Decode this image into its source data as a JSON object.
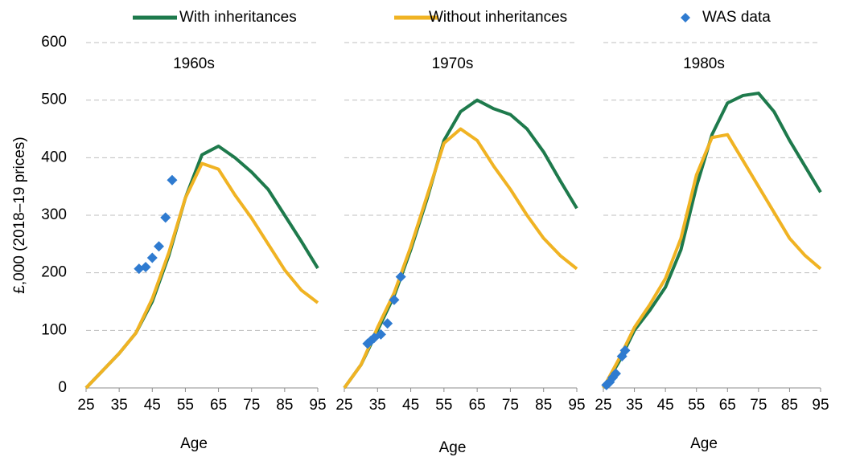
{
  "chart_data": [
    {
      "type": "line",
      "title": "1960s",
      "x_label": "Age",
      "y_label": "£,000 (2018–19 prices)",
      "x": [
        25,
        30,
        35,
        40,
        45,
        50,
        55,
        60,
        65,
        70,
        75,
        80,
        85,
        90,
        95
      ],
      "series": [
        {
          "name": "With inheritances",
          "color": "#1e7a4c",
          "values": [
            0,
            30,
            60,
            95,
            150,
            230,
            330,
            405,
            420,
            400,
            375,
            345,
            300,
            255,
            208
          ]
        },
        {
          "name": "Without inheritances",
          "color": "#f0b323",
          "values": [
            0,
            30,
            60,
            95,
            155,
            235,
            330,
            390,
            380,
            335,
            295,
            250,
            205,
            170,
            148
          ]
        },
        {
          "name": "WAS data",
          "type": "scatter",
          "color": "#2f7bd0",
          "x": [
            41,
            43,
            45,
            47,
            49,
            51
          ],
          "values": [
            207,
            210,
            226,
            246,
            296,
            361
          ]
        }
      ],
      "xlim": [
        25,
        95
      ],
      "xticks": [
        25,
        35,
        45,
        55,
        65,
        75,
        85,
        95
      ],
      "ylim": [
        0,
        600
      ],
      "yticks": [
        0,
        100,
        200,
        300,
        400,
        500,
        600
      ],
      "grid": true
    },
    {
      "type": "line",
      "title": "1970s",
      "x_label": "Age",
      "x": [
        25,
        30,
        35,
        40,
        45,
        50,
        55,
        60,
        65,
        70,
        75,
        80,
        85,
        90,
        95
      ],
      "series": [
        {
          "color": "#1e7a4c",
          "values": [
            0,
            40,
            100,
            160,
            240,
            330,
            430,
            480,
            500,
            485,
            475,
            450,
            410,
            360,
            312
          ]
        },
        {
          "color": "#f0b323",
          "values": [
            0,
            40,
            105,
            165,
            245,
            335,
            425,
            450,
            430,
            385,
            345,
            300,
            260,
            230,
            207
          ]
        },
        {
          "type": "scatter",
          "color": "#2f7bd0",
          "x": [
            32,
            33,
            34,
            36,
            38,
            40,
            42
          ],
          "values": [
            77,
            82,
            87,
            93,
            112,
            153,
            193
          ]
        }
      ],
      "xlim": [
        25,
        95
      ],
      "xticks": [
        25,
        35,
        45,
        55,
        65,
        75,
        85,
        95
      ],
      "ylim": [
        0,
        600
      ],
      "yticks": [
        0,
        100,
        200,
        300,
        400,
        500,
        600
      ],
      "grid": true
    },
    {
      "type": "line",
      "title": "1980s",
      "x_label": "Age",
      "x": [
        25,
        30,
        35,
        40,
        45,
        50,
        55,
        60,
        65,
        70,
        75,
        80,
        85,
        90,
        95
      ],
      "series": [
        {
          "color": "#1e7a4c",
          "values": [
            0,
            45,
            100,
            135,
            175,
            240,
            350,
            440,
            495,
            508,
            512,
            480,
            430,
            385,
            340
          ]
        },
        {
          "color": "#f0b323",
          "values": [
            0,
            50,
            105,
            145,
            190,
            260,
            370,
            435,
            440,
            395,
            350,
            305,
            260,
            230,
            207
          ]
        },
        {
          "type": "scatter",
          "color": "#2f7bd0",
          "x": [
            26,
            27,
            28,
            29,
            31,
            32
          ],
          "values": [
            5,
            10,
            18,
            25,
            55,
            65
          ]
        }
      ],
      "xlim": [
        25,
        95
      ],
      "xticks": [
        25,
        35,
        45,
        55,
        65,
        75,
        85,
        95
      ],
      "ylim": [
        0,
        600
      ],
      "yticks": [
        0,
        100,
        200,
        300,
        400,
        500,
        600
      ],
      "grid": true
    }
  ]
}
